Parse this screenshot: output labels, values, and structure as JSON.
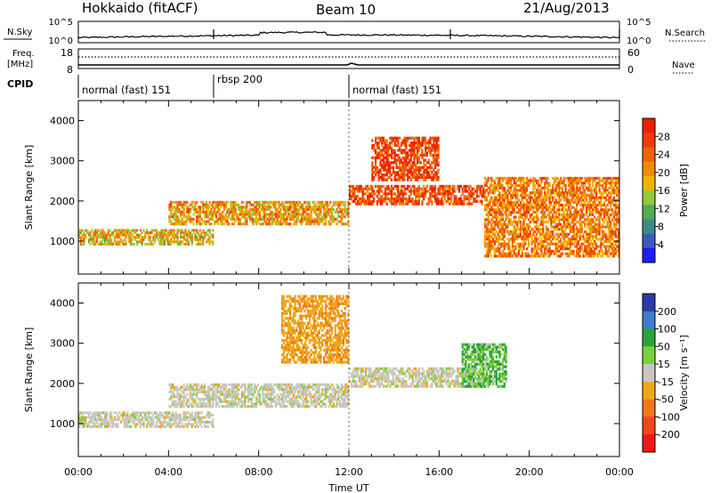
{
  "header": {
    "station": "Hokkaido (fitACF)",
    "beam": "Beam 10",
    "date": "21/Aug/2013"
  },
  "noise_panel": {
    "left_label": "N.Sky",
    "right_label": "N.Search",
    "left_ticks": [
      "10^5",
      "10^0"
    ],
    "right_ticks": [
      "10^5",
      "10^0"
    ]
  },
  "freq_panel": {
    "left_label_line1": "Freq.",
    "left_label_line2": "[MHz]",
    "left_ticks": [
      "18",
      "8"
    ],
    "right_label": "Nave",
    "right_ticks": [
      "60",
      "0"
    ]
  },
  "cpid": {
    "label": "CPID",
    "segments": [
      {
        "label": "normal (fast) 151",
        "start_ut": 0,
        "end_ut": 6
      },
      {
        "label": "rbsp 200",
        "start_ut": 6,
        "end_ut": 12
      },
      {
        "label": "normal (fast) 151",
        "start_ut": 12,
        "end_ut": 24
      }
    ]
  },
  "x_axis": {
    "title": "Time UT",
    "ticks": [
      "00:00",
      "04:00",
      "08:00",
      "12:00",
      "16:00",
      "20:00",
      "00:00"
    ],
    "range_hours": [
      0,
      24
    ]
  },
  "chart_data": [
    {
      "type": "heatmap",
      "panel": "power",
      "ylabel": "Slant Range [km]",
      "ylim": [
        180,
        4500
      ],
      "yticks": [
        "1000",
        "2000",
        "3000",
        "4000"
      ],
      "ytick_values": [
        1000,
        2000,
        3000,
        4000
      ],
      "colorbar_label": "Power [dB]",
      "colorbar_ticks": [
        "4",
        "8",
        "12",
        "16",
        "20",
        "24",
        "28"
      ],
      "colorbar_colors": [
        "#1e1ef0",
        "#3c5abe",
        "#3c8c8c",
        "#55aa55",
        "#96c83c",
        "#f0b400",
        "#f08c00",
        "#f06400",
        "#f03c00",
        "#f01e00"
      ],
      "echo_bands": [
        {
          "ut": [
            0,
            6
          ],
          "range_km": [
            900,
            1300
          ],
          "value_db": 18
        },
        {
          "ut": [
            4,
            12
          ],
          "range_km": [
            1400,
            2000
          ],
          "value_db": 20
        },
        {
          "ut": [
            12,
            18
          ],
          "range_km": [
            1900,
            2400
          ],
          "value_db": 26
        },
        {
          "ut": [
            18,
            24
          ],
          "range_km": [
            600,
            2600
          ],
          "value_db": 22
        },
        {
          "ut": [
            13,
            16
          ],
          "range_km": [
            2500,
            3600
          ],
          "value_db": 27
        }
      ]
    },
    {
      "type": "heatmap",
      "panel": "velocity",
      "ylabel": "Slant Range [km]",
      "ylim": [
        180,
        4500
      ],
      "yticks": [
        "1000",
        "2000",
        "3000",
        "4000"
      ],
      "ytick_values": [
        1000,
        2000,
        3000,
        4000
      ],
      "colorbar_label": "Velocity [m s⁻¹]",
      "colorbar_ticks": [
        "200",
        "100",
        "50",
        "15",
        "-15",
        "-50",
        "-100",
        "-200"
      ],
      "colorbar_colors": [
        "#2a3aa8",
        "#3f7cc8",
        "#2aa33a",
        "#7cd23a",
        "#c8c8c0",
        "#f0a818",
        "#f07818",
        "#f04818",
        "#f01818"
      ],
      "echo_bands": [
        {
          "ut": [
            0,
            6
          ],
          "range_km": [
            900,
            1300
          ],
          "value_ms": 0
        },
        {
          "ut": [
            4,
            12
          ],
          "range_km": [
            1400,
            2000
          ],
          "value_ms": 0
        },
        {
          "ut": [
            12,
            18
          ],
          "range_km": [
            1900,
            2400
          ],
          "value_ms": 0
        },
        {
          "ut": [
            17,
            19
          ],
          "range_km": [
            1900,
            3000
          ],
          "value_ms": 30
        },
        {
          "ut": [
            9,
            12
          ],
          "range_km": [
            2500,
            4200
          ],
          "value_ms": -40
        }
      ]
    }
  ]
}
